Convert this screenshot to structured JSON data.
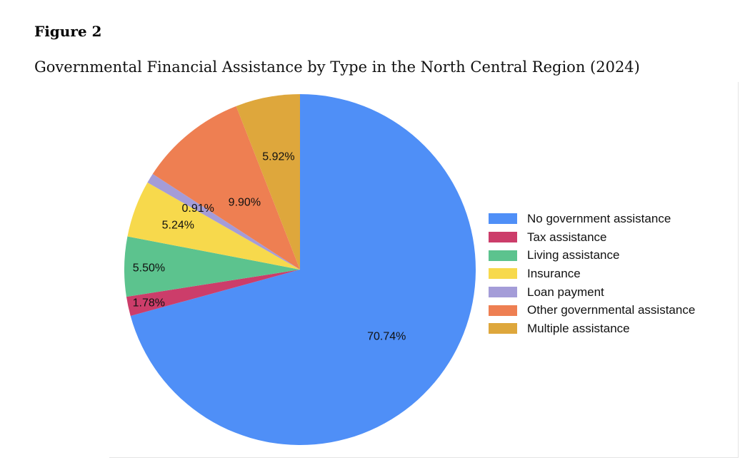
{
  "figure": {
    "label": "Figure 2",
    "title": "Governmental Financial Assistance by Type in the North Central Region (2024)"
  },
  "chart_data": {
    "type": "pie",
    "title": "",
    "legend_position": "right",
    "slices": [
      {
        "label": "No government assistance",
        "value": 70.74,
        "display": "70.74%",
        "color": "#4f8ff7"
      },
      {
        "label": "Tax assistance",
        "value": 1.78,
        "display": "1.78%",
        "color": "#cc3d6a"
      },
      {
        "label": "Living assistance",
        "value": 5.5,
        "display": "5.50%",
        "color": "#5cc38e"
      },
      {
        "label": "Insurance",
        "value": 5.24,
        "display": "5.24%",
        "color": "#f7d94c"
      },
      {
        "label": "Loan payment",
        "value": 0.91,
        "display": "0.91%",
        "color": "#a49cd8"
      },
      {
        "label": "Other governmental assistance",
        "value": 9.9,
        "display": "9.90%",
        "color": "#ee7f52"
      },
      {
        "label": "Multiple assistance",
        "value": 5.92,
        "display": "5.92%",
        "color": "#dea73c"
      }
    ]
  }
}
